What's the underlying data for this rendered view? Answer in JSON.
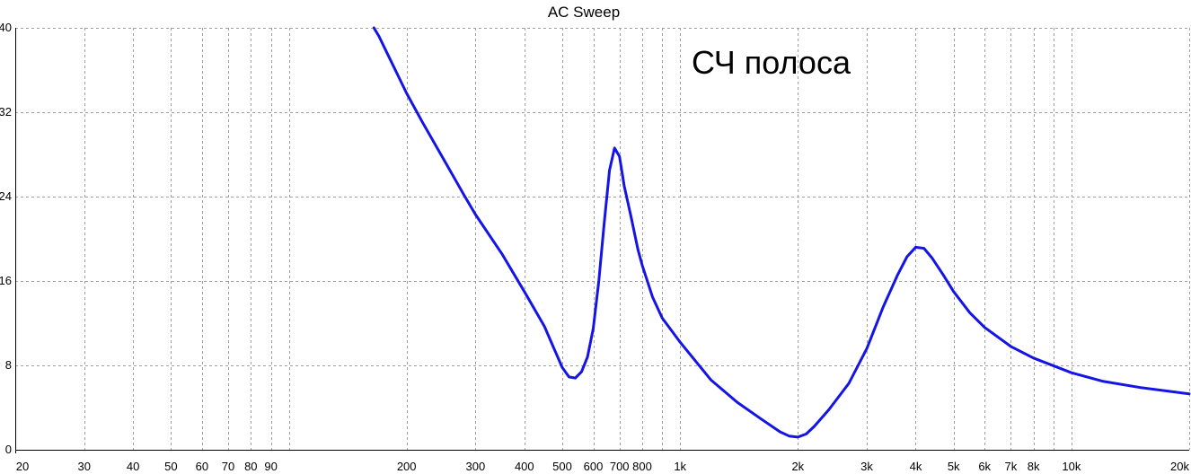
{
  "chart_data": {
    "type": "line",
    "title": "AC Sweep",
    "annotation": "СЧ полоса",
    "xscale": "log",
    "xlim": [
      20,
      20000
    ],
    "ylim": [
      0,
      40
    ],
    "grid": true,
    "line_color": "#1414e6",
    "x_ticks": [
      {
        "value": 20,
        "label": "20"
      },
      {
        "value": 30,
        "label": "30"
      },
      {
        "value": 40,
        "label": "40"
      },
      {
        "value": 50,
        "label": "50"
      },
      {
        "value": 60,
        "label": "60"
      },
      {
        "value": 70,
        "label": "70"
      },
      {
        "value": 80,
        "label": "80"
      },
      {
        "value": 90,
        "label": "90"
      },
      {
        "value": 200,
        "label": "200"
      },
      {
        "value": 300,
        "label": "300"
      },
      {
        "value": 400,
        "label": "400"
      },
      {
        "value": 500,
        "label": "500"
      },
      {
        "value": 600,
        "label": "600"
      },
      {
        "value": 700,
        "label": "700"
      },
      {
        "value": 800,
        "label": "800"
      },
      {
        "value": 1000,
        "label": "1k"
      },
      {
        "value": 2000,
        "label": "2k"
      },
      {
        "value": 3000,
        "label": "3k"
      },
      {
        "value": 4000,
        "label": "4k"
      },
      {
        "value": 5000,
        "label": "5k"
      },
      {
        "value": 6000,
        "label": "6k"
      },
      {
        "value": 7000,
        "label": "7k"
      },
      {
        "value": 8000,
        "label": "8k"
      },
      {
        "value": 10000,
        "label": "10k"
      },
      {
        "value": 20000,
        "label": "20k"
      }
    ],
    "x_grid_only": [
      100,
      900,
      9000
    ],
    "y_ticks": [
      {
        "value": 0,
        "label": "0"
      },
      {
        "value": 8,
        "label": "8"
      },
      {
        "value": 16,
        "label": "16"
      },
      {
        "value": 24,
        "label": "24"
      },
      {
        "value": 32,
        "label": "32"
      },
      {
        "value": 40,
        "label": "40"
      }
    ],
    "series": [
      {
        "x": [
          165,
          170,
          180,
          190,
          200,
          220,
          250,
          280,
          300,
          350,
          400,
          450,
          480,
          500,
          520,
          540,
          560,
          580,
          600,
          620,
          640,
          660,
          680,
          700,
          720,
          750,
          780,
          800,
          850,
          900,
          1000,
          1200,
          1400,
          1600,
          1800,
          1900,
          2000,
          2100,
          2200,
          2400,
          2700,
          3000,
          3300,
          3600,
          3800,
          4000,
          4200,
          4400,
          4700,
          5000,
          5500,
          6000,
          7000,
          8000,
          10000,
          12000,
          15000,
          20000
        ],
        "y": [
          40,
          39.2,
          37.3,
          35.5,
          33.8,
          31,
          27.4,
          24.2,
          22.3,
          18.6,
          15,
          11.7,
          9.3,
          7.8,
          6.9,
          6.8,
          7.4,
          8.8,
          11.5,
          16,
          21.5,
          26.5,
          28.6,
          27.8,
          25,
          22,
          19,
          17.5,
          14.5,
          12.5,
          10.2,
          6.6,
          4.5,
          3,
          1.7,
          1.3,
          1.2,
          1.5,
          2.2,
          3.8,
          6.3,
          9.6,
          13.5,
          16.6,
          18.3,
          19.2,
          19.1,
          18.2,
          16.6,
          15,
          13,
          11.6,
          9.8,
          8.7,
          7.3,
          6.5,
          5.9,
          5.3
        ]
      }
    ]
  }
}
